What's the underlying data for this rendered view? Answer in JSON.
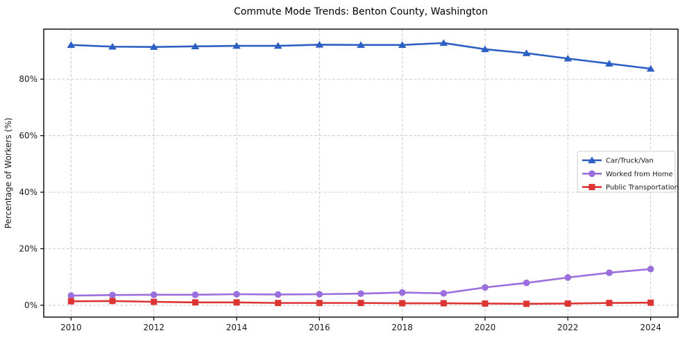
{
  "title": "Commute Mode Trends: Benton County, Washington",
  "chart_data": {
    "type": "line",
    "title": "Commute Mode Trends: Benton County, Washington",
    "xlabel": "",
    "ylabel": "Percentage of Workers (%)",
    "x": [
      2010,
      2011,
      2012,
      2013,
      2014,
      2015,
      2016,
      2017,
      2018,
      2019,
      2020,
      2021,
      2022,
      2023,
      2024
    ],
    "series": [
      {
        "name": "Car/Truck/Van",
        "color": "#2c5fc3",
        "marker": "triangle",
        "values": [
          92.1,
          91.5,
          91.4,
          91.6,
          91.8,
          91.8,
          92.2,
          92.1,
          92.1,
          92.8,
          90.6,
          89.2,
          87.3,
          85.5,
          83.7
        ]
      },
      {
        "name": "Worked from Home",
        "color": "#9b6edd",
        "marker": "circle",
        "values": [
          3.4,
          3.6,
          3.7,
          3.7,
          3.9,
          3.8,
          3.9,
          4.1,
          4.5,
          4.2,
          6.3,
          7.9,
          9.8,
          11.5,
          12.8
        ]
      },
      {
        "name": "Public Transportation",
        "color": "#dc3433",
        "marker": "square",
        "values": [
          1.4,
          1.5,
          1.2,
          1.0,
          1.0,
          0.8,
          0.8,
          0.8,
          0.7,
          0.7,
          0.6,
          0.5,
          0.6,
          0.8,
          0.9
        ]
      }
    ],
    "xticks": [
      2010,
      2012,
      2014,
      2016,
      2018,
      2020,
      2022,
      2024
    ],
    "yticks": [
      0,
      20,
      40,
      60,
      80
    ],
    "ytick_suffix": "%",
    "xlim": [
      2009.34,
      2024.66
    ],
    "ylim": [
      -4.2,
      97.7
    ],
    "grid": "dashed",
    "legend_position": "right-center",
    "legend_labels": [
      "Car/Truck/Van",
      "Worked from Home",
      "Public Transportation"
    ]
  },
  "colors": {
    "background": "#ffffff",
    "frame": "#000000",
    "grid": "#cccccc",
    "text": "#1a1a1a",
    "legend_border": "#cccccc",
    "legend_background": "#ffffff"
  }
}
